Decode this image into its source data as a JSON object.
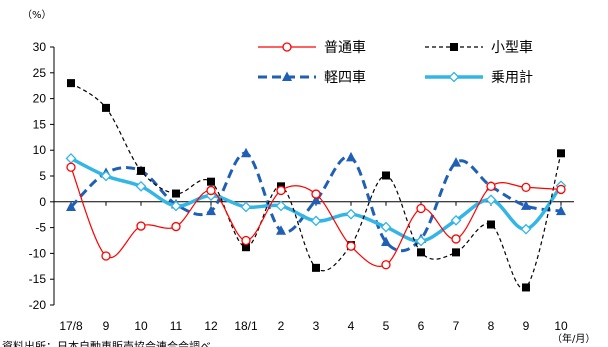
{
  "chart_data": {
    "type": "line",
    "y_unit_label": "（%）",
    "x_unit_label": "（年/月）",
    "source_note": "資料出所：日本自動車販売協会連合会調べ",
    "categories": [
      "17/8",
      "9",
      "10",
      "11",
      "12",
      "18/1",
      "2",
      "3",
      "4",
      "5",
      "6",
      "7",
      "8",
      "9",
      "10"
    ],
    "ylim": [
      -20,
      30
    ],
    "yticks": [
      30,
      25,
      20,
      15,
      10,
      5,
      0,
      -5,
      -10,
      -15,
      -20
    ],
    "grid": false,
    "legend_position": "top-right",
    "series": [
      {
        "name": "普通車",
        "color": "#ff0000",
        "style": "thin-solid",
        "marker": "circle-open",
        "values": [
          6.7,
          -10.5,
          -4.7,
          -4.8,
          2.2,
          -7.5,
          2.2,
          1.5,
          -8.6,
          -12.2,
          -1.3,
          -7.2,
          3.0,
          2.8,
          2.4
        ]
      },
      {
        "name": "小型車",
        "color": "#000000",
        "style": "thin-dashed",
        "marker": "square-filled",
        "values": [
          23.0,
          18.2,
          6.0,
          1.6,
          3.9,
          -8.8,
          3.0,
          -12.8,
          -8.4,
          5.1,
          -9.8,
          -9.8,
          -4.4,
          -16.6,
          9.4
        ]
      },
      {
        "name": "軽四車",
        "color": "#1f5fb4",
        "style": "thick-dashed",
        "marker": "triangle-filled",
        "values": [
          -1.0,
          5.6,
          6.0,
          -0.5,
          -1.8,
          9.4,
          -5.6,
          0.3,
          8.6,
          -7.8,
          -7.2,
          7.6,
          3.0,
          -0.8,
          -1.8
        ]
      },
      {
        "name": "乗用計",
        "color": "#33b5e5",
        "style": "thick-solid",
        "marker": "diamond-open",
        "values": [
          8.4,
          5.0,
          3.0,
          -0.8,
          1.2,
          -1.0,
          -0.8,
          -3.7,
          -2.4,
          -4.9,
          -7.6,
          -3.6,
          0.4,
          -5.3,
          3.1
        ]
      }
    ]
  }
}
